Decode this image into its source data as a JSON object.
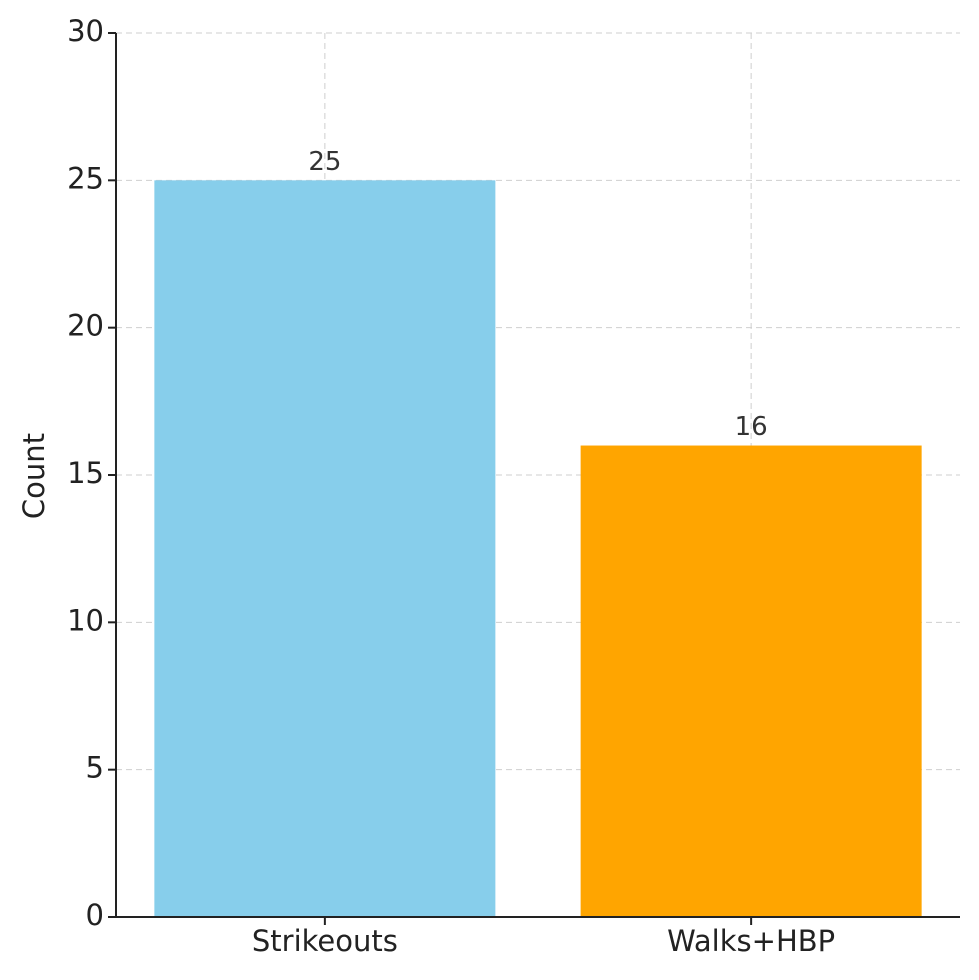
{
  "chart_data": {
    "type": "bar",
    "ylabel": "Count",
    "categories": [
      "Strikeouts",
      "Walks+HBP"
    ],
    "values": [
      25,
      16
    ],
    "colors": [
      "#87ceeb",
      "#ffa500"
    ],
    "ylim": [
      0,
      30
    ],
    "yticks": [
      0,
      5,
      10,
      15,
      20,
      25,
      30
    ],
    "grid": true
  }
}
